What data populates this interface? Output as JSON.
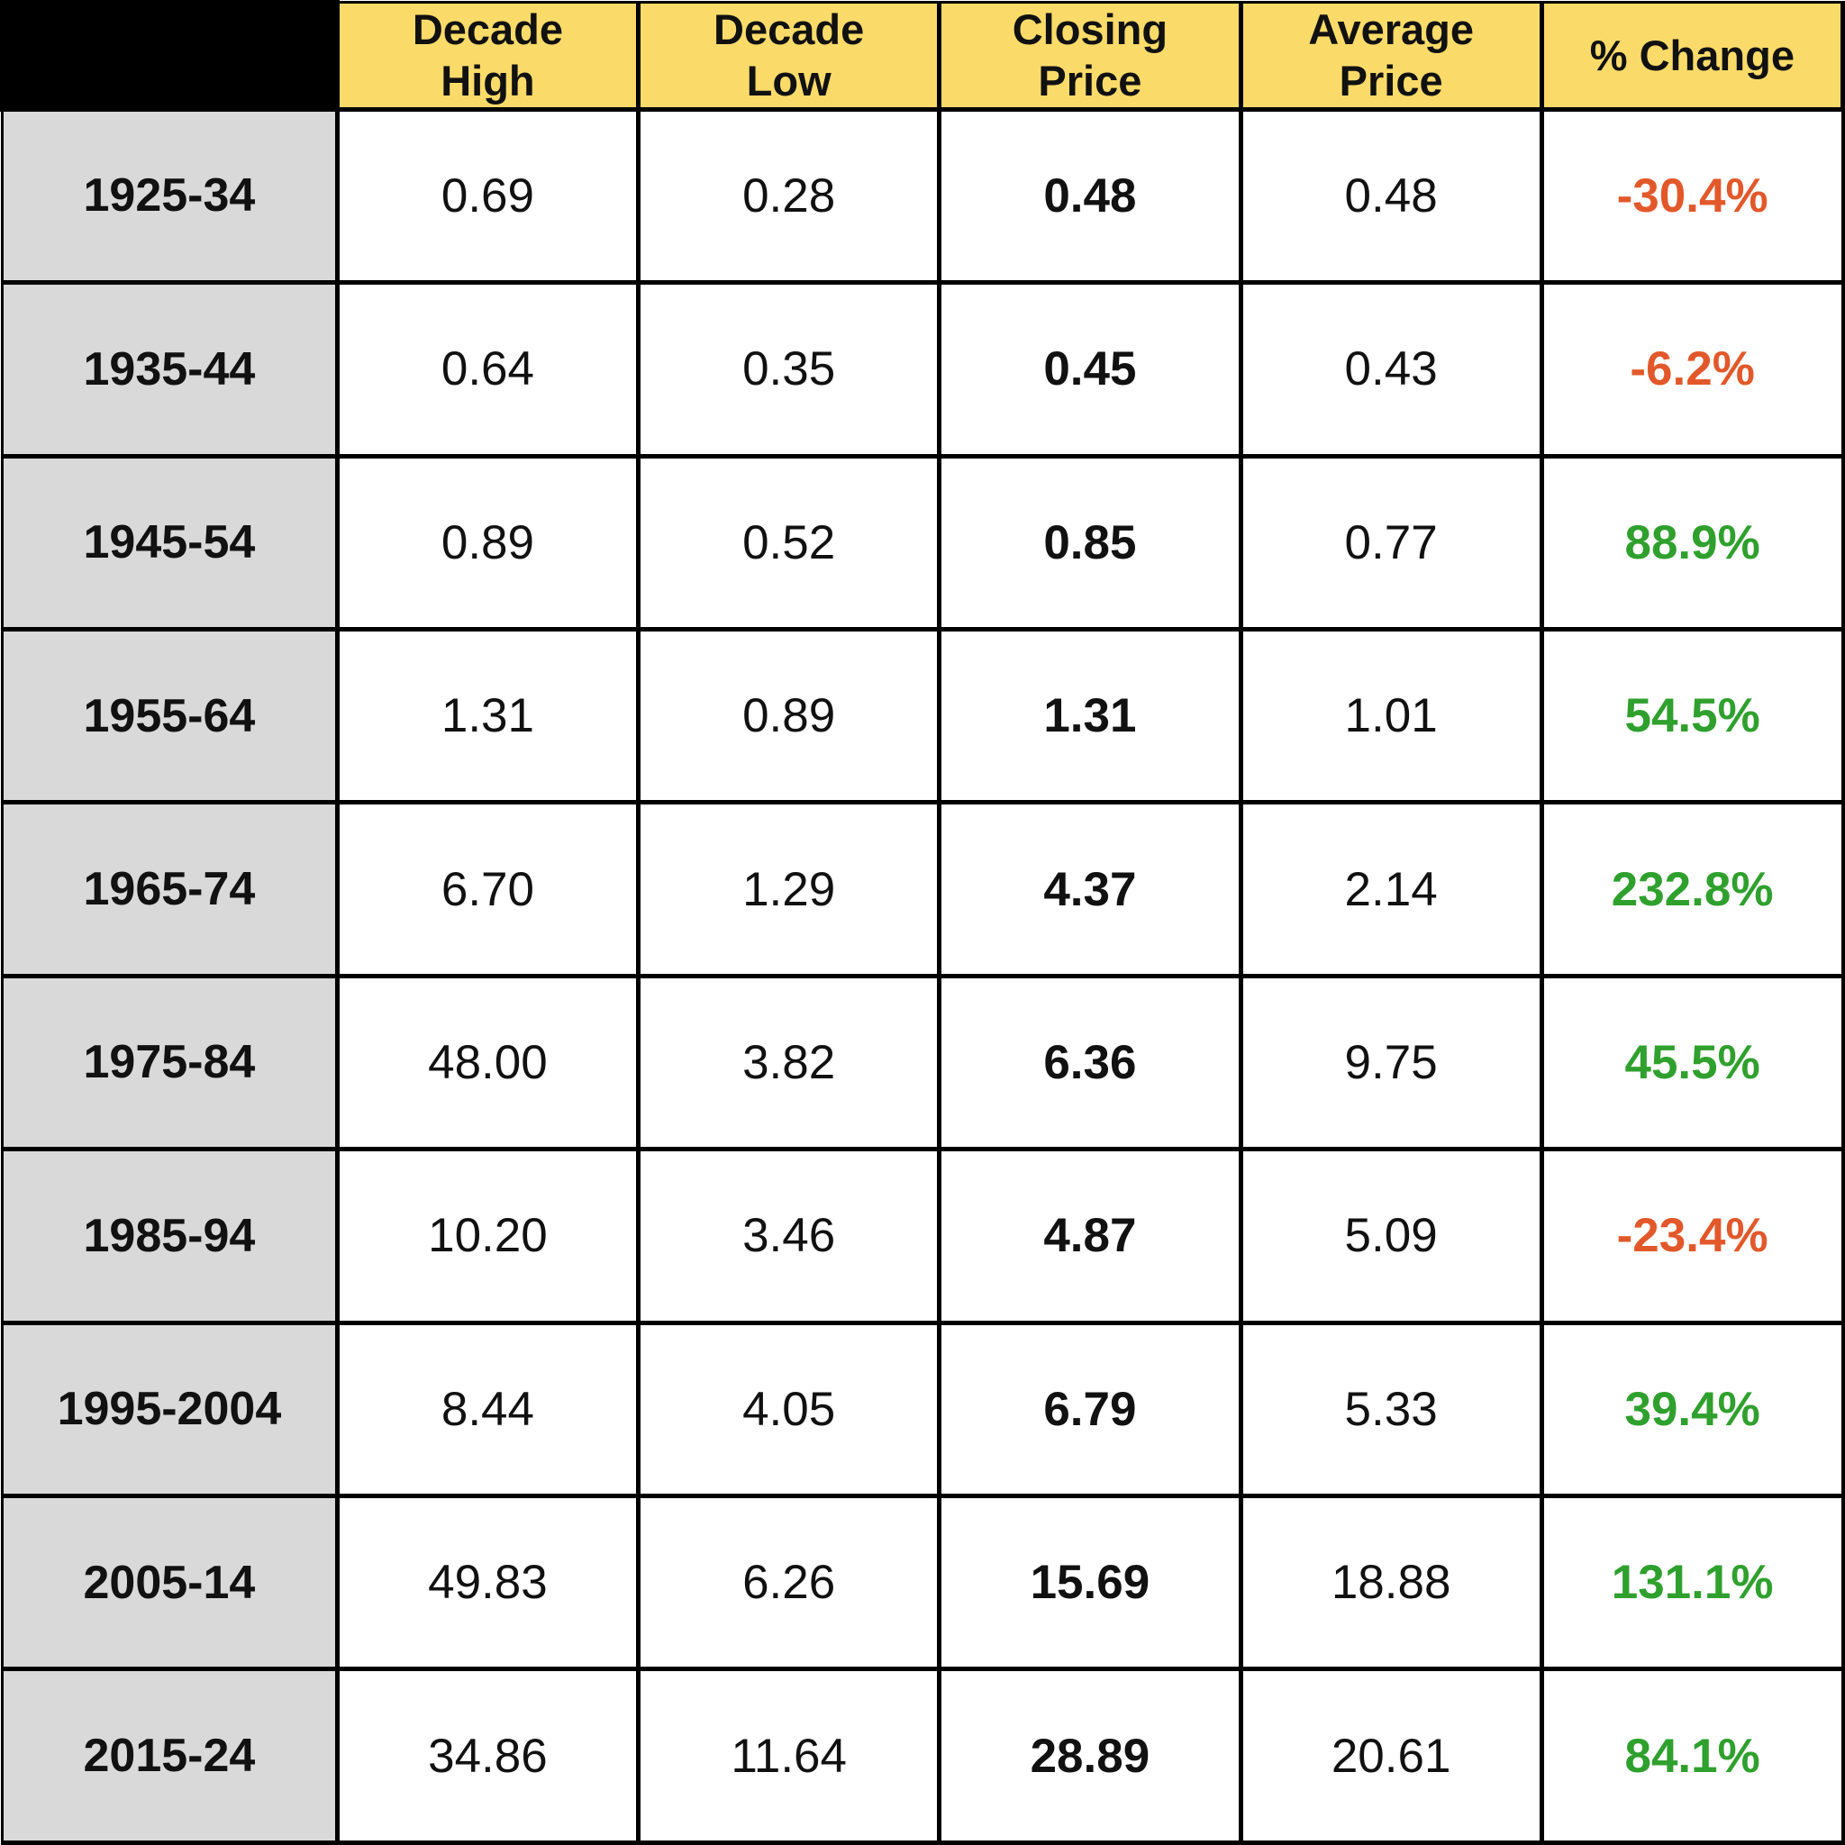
{
  "table": {
    "corner_label": "",
    "columns": [
      {
        "label": "Decade High"
      },
      {
        "label": "Decade Low"
      },
      {
        "label": "Closing Price"
      },
      {
        "label": "Average Price"
      },
      {
        "label": "% Change"
      }
    ],
    "rows": [
      {
        "period": "1925-34",
        "decade_high": "0.69",
        "decade_low": "0.28",
        "closing_price": "0.48",
        "average_price": "0.48",
        "pct_change": "-30.4%",
        "change_direction": "negative"
      },
      {
        "period": "1935-44",
        "decade_high": "0.64",
        "decade_low": "0.35",
        "closing_price": "0.45",
        "average_price": "0.43",
        "pct_change": "-6.2%",
        "change_direction": "negative"
      },
      {
        "period": "1945-54",
        "decade_high": "0.89",
        "decade_low": "0.52",
        "closing_price": "0.85",
        "average_price": "0.77",
        "pct_change": "88.9%",
        "change_direction": "positive"
      },
      {
        "period": "1955-64",
        "decade_high": "1.31",
        "decade_low": "0.89",
        "closing_price": "1.31",
        "average_price": "1.01",
        "pct_change": "54.5%",
        "change_direction": "positive"
      },
      {
        "period": "1965-74",
        "decade_high": "6.70",
        "decade_low": "1.29",
        "closing_price": "4.37",
        "average_price": "2.14",
        "pct_change": "232.8%",
        "change_direction": "positive"
      },
      {
        "period": "1975-84",
        "decade_high": "48.00",
        "decade_low": "3.82",
        "closing_price": "6.36",
        "average_price": "9.75",
        "pct_change": "45.5%",
        "change_direction": "positive"
      },
      {
        "period": "1985-94",
        "decade_high": "10.20",
        "decade_low": "3.46",
        "closing_price": "4.87",
        "average_price": "5.09",
        "pct_change": "-23.4%",
        "change_direction": "negative"
      },
      {
        "period": "1995-2004",
        "decade_high": "8.44",
        "decade_low": "4.05",
        "closing_price": "6.79",
        "average_price": "5.33",
        "pct_change": "39.4%",
        "change_direction": "positive"
      },
      {
        "period": "2005-14",
        "decade_high": "49.83",
        "decade_low": "6.26",
        "closing_price": "15.69",
        "average_price": "18.88",
        "pct_change": "131.1%",
        "change_direction": "positive"
      },
      {
        "period": "2015-24",
        "decade_high": "34.86",
        "decade_low": "11.64",
        "closing_price": "28.89",
        "average_price": "20.61",
        "pct_change": "84.1%",
        "change_direction": "positive"
      }
    ]
  },
  "chart_data": {
    "type": "table",
    "categories": [
      "1925-34",
      "1935-44",
      "1945-54",
      "1955-64",
      "1965-74",
      "1975-84",
      "1985-94",
      "1995-2004",
      "2005-14",
      "2015-24"
    ],
    "series": [
      {
        "name": "Decade High",
        "values": [
          0.69,
          0.64,
          0.89,
          1.31,
          6.7,
          48.0,
          10.2,
          8.44,
          49.83,
          34.86
        ]
      },
      {
        "name": "Decade Low",
        "values": [
          0.28,
          0.35,
          0.52,
          0.89,
          1.29,
          3.82,
          3.46,
          4.05,
          6.26,
          11.64
        ]
      },
      {
        "name": "Closing Price",
        "values": [
          0.48,
          0.45,
          0.85,
          1.31,
          4.37,
          6.36,
          4.87,
          6.79,
          15.69,
          28.89
        ]
      },
      {
        "name": "Average Price",
        "values": [
          0.48,
          0.43,
          0.77,
          1.01,
          2.14,
          9.75,
          5.09,
          5.33,
          18.88,
          20.61
        ]
      },
      {
        "name": "% Change",
        "values": [
          -30.4,
          -6.2,
          88.9,
          54.5,
          232.8,
          45.5,
          -23.4,
          39.4,
          131.1,
          84.1
        ]
      }
    ]
  },
  "colors": {
    "header_bg": "#FADB69",
    "corner_bg": "#000000",
    "row_label_bg": "#D9D9D9",
    "cell_bg": "#FFFFFF",
    "border": "#000000",
    "positive": "#2FA02D",
    "negative": "#E2582A",
    "text": "#111111"
  }
}
